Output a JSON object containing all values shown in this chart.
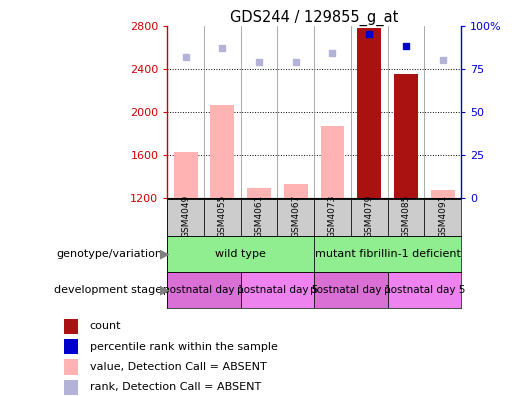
{
  "title": "GDS244 / 129855_g_at",
  "samples": [
    "GSM4049",
    "GSM4055",
    "GSM4061",
    "GSM4067",
    "GSM4073",
    "GSM4079",
    "GSM4085",
    "GSM4091"
  ],
  "bar_values": [
    1630,
    2060,
    1290,
    1330,
    1870,
    2780,
    2350,
    1270
  ],
  "bar_absent": [
    true,
    true,
    true,
    true,
    true,
    false,
    false,
    true
  ],
  "rank_values": [
    82,
    87,
    79,
    79,
    84,
    95,
    88,
    80
  ],
  "rank_absent": [
    true,
    true,
    true,
    true,
    true,
    false,
    false,
    true
  ],
  "ylim_left": [
    1200,
    2800
  ],
  "ylim_right": [
    0,
    100
  ],
  "yticks_left": [
    1200,
    1600,
    2000,
    2400,
    2800
  ],
  "yticks_right": [
    0,
    25,
    50,
    75,
    100
  ],
  "color_bar_absent": "#ffb3b3",
  "color_bar_present": "#aa1111",
  "color_rank_absent": "#b3b3d8",
  "color_rank_present": "#0000cc",
  "color_left_axis": "#cc0000",
  "color_right_axis": "#0000cc",
  "genotype_color": "#90ee90",
  "stage_color_1": "#da70d6",
  "stage_color_5": "#ee82ee",
  "sample_box_color": "#cccccc",
  "legend_labels": [
    "count",
    "percentile rank within the sample",
    "value, Detection Call = ABSENT",
    "rank, Detection Call = ABSENT"
  ],
  "legend_colors": [
    "#aa1111",
    "#0000cc",
    "#ffb3b3",
    "#b3b3d8"
  ]
}
